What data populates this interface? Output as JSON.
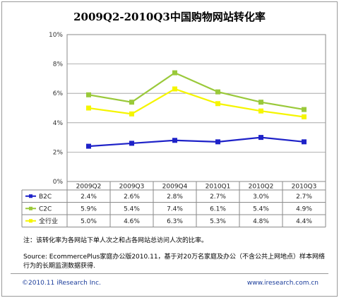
{
  "page": {
    "title": "2009Q2-2010Q3中国购物网站转化率",
    "note": "注：该转化率为各网站下单人次之和占各网站总访问人次的比率。",
    "source": "Source: EcommercePlus家庭办公版2010.11，基于对20万名家庭及办公（不含公共上网地点）样本网络行为的长期监测数据获得.",
    "copyright": "©2010.11 iResearch Inc.",
    "website": "www.iresearch.com.cn"
  },
  "chart_data": {
    "type": "line",
    "title": "2009Q2-2010Q3中国购物网站转化率",
    "categories": [
      "2009Q2",
      "2009Q3",
      "2009Q4",
      "2010Q1",
      "2010Q2",
      "2010Q3"
    ],
    "y_ticks": [
      "0%",
      "2%",
      "4%",
      "6%",
      "8%",
      "10%"
    ],
    "ylim": [
      0,
      10
    ],
    "grid": true,
    "series": [
      {
        "name": "B2C",
        "color": "#1e22c8",
        "marker": "square",
        "values": [
          2.4,
          2.6,
          2.8,
          2.7,
          3.0,
          2.7
        ],
        "labels": [
          "2.4%",
          "2.6%",
          "2.8%",
          "2.7%",
          "3.0%",
          "2.7%"
        ]
      },
      {
        "name": "C2C",
        "color": "#9ac93a",
        "marker": "square",
        "values": [
          5.9,
          5.4,
          7.4,
          6.1,
          5.4,
          4.9
        ],
        "labels": [
          "5.9%",
          "5.4%",
          "7.4%",
          "6.1%",
          "5.4%",
          "4.9%"
        ]
      },
      {
        "name": "全行业",
        "color": "#f5f500",
        "marker": "square",
        "values": [
          5.0,
          4.6,
          6.3,
          5.3,
          4.8,
          4.4
        ],
        "labels": [
          "5.0%",
          "4.6%",
          "6.3%",
          "5.3%",
          "4.8%",
          "4.4%"
        ]
      }
    ]
  }
}
